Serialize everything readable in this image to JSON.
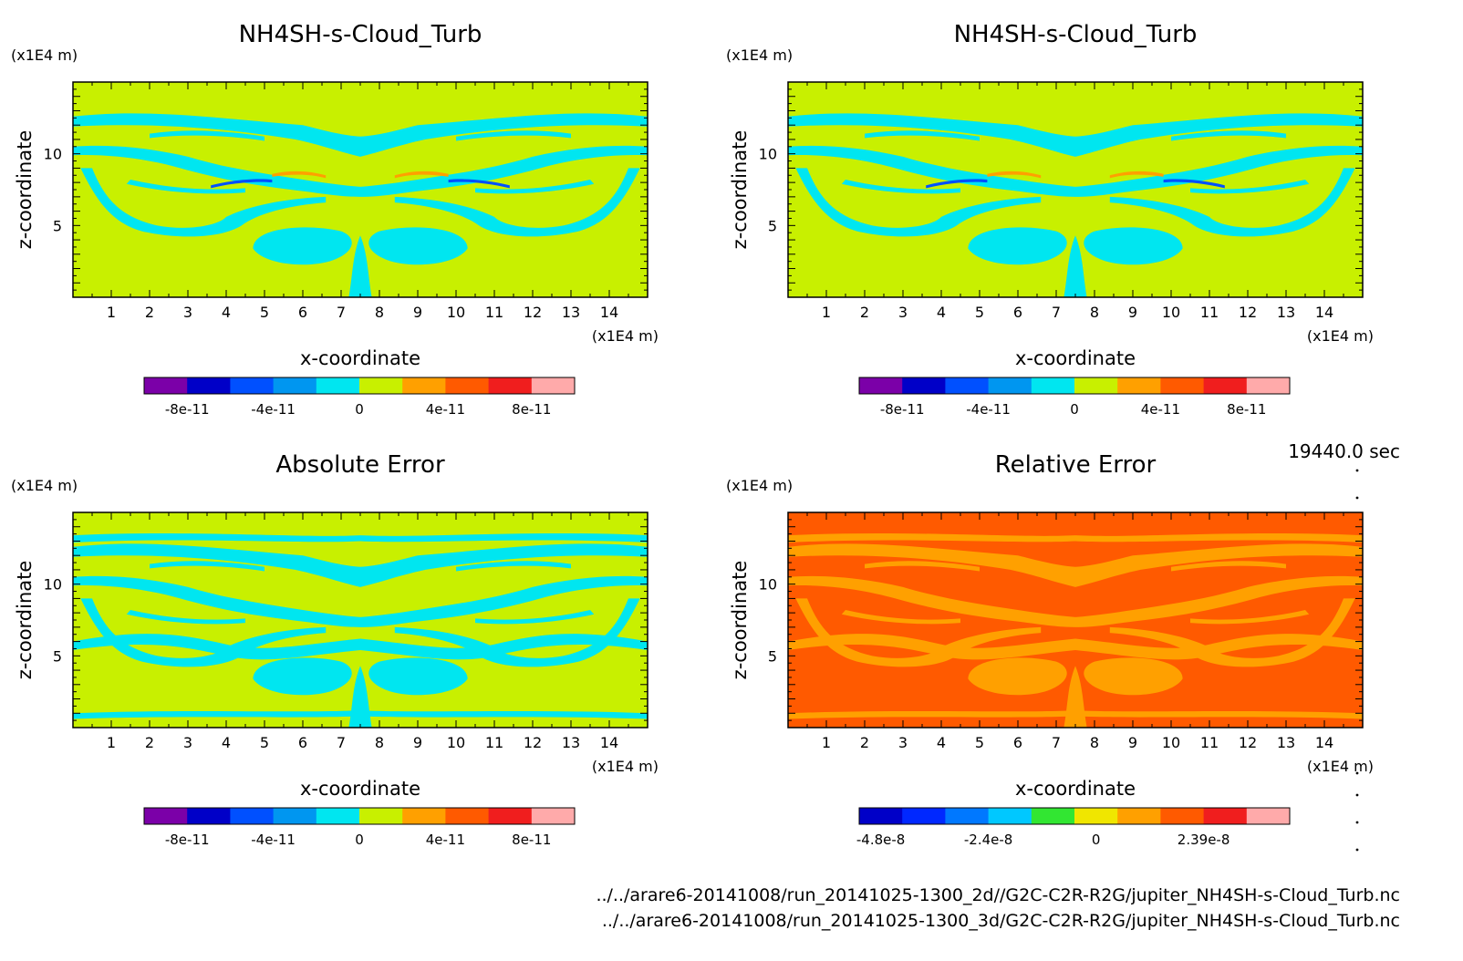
{
  "figure": {
    "time_label": "19440.0 sec",
    "footer": [
      "../../arare6-20141008/run_20141025-1300_2d//G2C-C2R-R2G/jupiter_NH4SH-s-Cloud_Turb.nc",
      "../../arare6-20141008/run_20141025-1300_3d/G2C-C2R-R2G/jupiter_NH4SH-s-Cloud_Turb.nc"
    ]
  },
  "chart_data": [
    {
      "type": "heatmap",
      "title": "NH4SH-s-Cloud_Turb",
      "xlabel": "x-coordinate",
      "ylabel": "z-coordinate",
      "x_unit": "(x1E4 m)",
      "y_unit": "(x1E4 m)",
      "xlim": [
        0,
        15
      ],
      "ylim": [
        0,
        15
      ],
      "x_ticks": [
        1,
        2,
        3,
        4,
        5,
        6,
        7,
        8,
        9,
        10,
        11,
        12,
        13,
        14
      ],
      "y_ticks": [
        5,
        10
      ],
      "field": "NH4SH cloud turbulence (2d run)",
      "dominant_level": "0 (yellow-green)",
      "colorbar": {
        "colors": [
          "#7b00a8",
          "#0000c8",
          "#0050ff",
          "#0096f0",
          "#00e6f0",
          "#c8f000",
          "#ffa000",
          "#ff5a00",
          "#f01e1e",
          "#ffaaaa"
        ],
        "tick_labels": [
          "-8e-11",
          "-4e-11",
          "0",
          "4e-11",
          "8e-11"
        ]
      }
    },
    {
      "type": "heatmap",
      "title": "NH4SH-s-Cloud_Turb",
      "xlabel": "x-coordinate",
      "ylabel": "z-coordinate",
      "x_unit": "(x1E4 m)",
      "y_unit": "(x1E4 m)",
      "xlim": [
        0,
        15
      ],
      "ylim": [
        0,
        15
      ],
      "x_ticks": [
        1,
        2,
        3,
        4,
        5,
        6,
        7,
        8,
        9,
        10,
        11,
        12,
        13,
        14
      ],
      "y_ticks": [
        5,
        10
      ],
      "field": "NH4SH cloud turbulence (3d run)",
      "dominant_level": "0 (yellow-green)",
      "colorbar": {
        "colors": [
          "#7b00a8",
          "#0000c8",
          "#0050ff",
          "#0096f0",
          "#00e6f0",
          "#c8f000",
          "#ffa000",
          "#ff5a00",
          "#f01e1e",
          "#ffaaaa"
        ],
        "tick_labels": [
          "-8e-11",
          "-4e-11",
          "0",
          "4e-11",
          "8e-11"
        ]
      }
    },
    {
      "type": "heatmap",
      "title": "Absolute Error",
      "xlabel": "x-coordinate",
      "ylabel": "z-coordinate",
      "x_unit": "(x1E4 m)",
      "y_unit": "(x1E4 m)",
      "xlim": [
        0,
        15
      ],
      "ylim": [
        0,
        15
      ],
      "x_ticks": [
        1,
        2,
        3,
        4,
        5,
        6,
        7,
        8,
        9,
        10,
        11,
        12,
        13,
        14
      ],
      "y_ticks": [
        5,
        10
      ],
      "field": "absolute difference",
      "dominant_level": "0 (yellow-green)",
      "colorbar": {
        "colors": [
          "#7b00a8",
          "#0000c8",
          "#0050ff",
          "#0096f0",
          "#00e6f0",
          "#c8f000",
          "#ffa000",
          "#ff5a00",
          "#f01e1e",
          "#ffaaaa"
        ],
        "tick_labels": [
          "-8e-11",
          "-4e-11",
          "0",
          "4e-11",
          "8e-11"
        ]
      }
    },
    {
      "type": "heatmap",
      "title": "Relative Error",
      "xlabel": "x-coordinate",
      "ylabel": "z-coordinate",
      "x_unit": "(x1E4 m)",
      "y_unit": "(x1E4 m)",
      "xlim": [
        0,
        15
      ],
      "ylim": [
        0,
        15
      ],
      "x_ticks": [
        1,
        2,
        3,
        4,
        5,
        6,
        7,
        8,
        9,
        10,
        11,
        12,
        13,
        14
      ],
      "y_ticks": [
        5,
        10
      ],
      "field": "relative difference",
      "dominant_level": "positive (red-orange)",
      "colorbar": {
        "colors": [
          "#0000c8",
          "#0028ff",
          "#0078ff",
          "#00c8ff",
          "#32e632",
          "#f0e600",
          "#ffa000",
          "#ff5a00",
          "#f01e1e",
          "#ffaaaa"
        ],
        "tick_labels": [
          "-4.8e-8",
          "-2.4e-8",
          "0",
          "2.39e-8"
        ]
      }
    }
  ]
}
